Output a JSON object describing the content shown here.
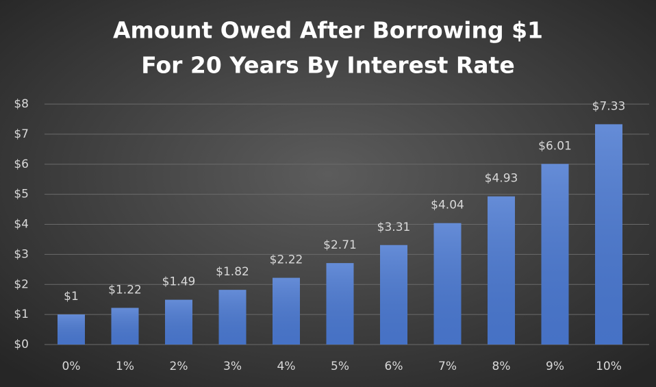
{
  "chart_data": {
    "type": "bar",
    "title": [
      "Amount Owed After Borrowing $1",
      "For 20 Years By Interest Rate"
    ],
    "categories": [
      "0%",
      "1%",
      "2%",
      "3%",
      "4%",
      "5%",
      "6%",
      "7%",
      "8%",
      "9%",
      "10%"
    ],
    "values": [
      1,
      1.22,
      1.49,
      1.82,
      2.22,
      2.71,
      3.31,
      4.04,
      4.93,
      6.01,
      7.33
    ],
    "value_labels": [
      "$1",
      "$1.22",
      "$1.49",
      "$1.82",
      "$2.22",
      "$2.71",
      "$3.31",
      "$4.04",
      "$4.93",
      "$6.01",
      "$7.33"
    ],
    "color": "#4a78d0",
    "ylim": [
      0,
      8
    ],
    "yticks": [
      {
        "value": 0,
        "label": "$0"
      },
      {
        "value": 1,
        "label": "$1"
      },
      {
        "value": 2,
        "label": "$2"
      },
      {
        "value": 3,
        "label": "$3"
      },
      {
        "value": 4,
        "label": "$4"
      },
      {
        "value": 5,
        "label": "$5"
      },
      {
        "value": 6,
        "label": "$6"
      },
      {
        "value": 7,
        "label": "$7"
      },
      {
        "value": 8,
        "label": "$8"
      }
    ],
    "grid": true
  }
}
